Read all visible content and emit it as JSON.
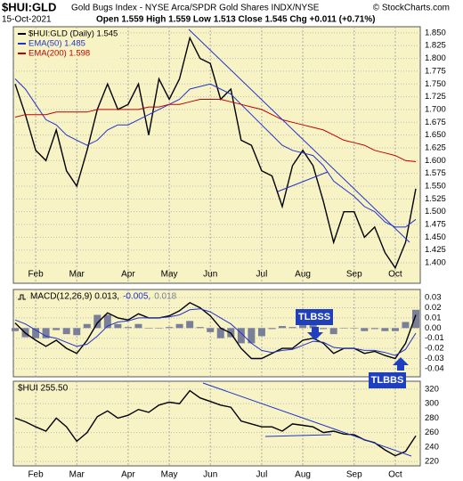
{
  "header": {
    "symbol": "$HUI:GLD",
    "subtitle": "Gold Bugs Index - NYSE Arca/SPDR Gold Shares INDX/NYSE",
    "source": "© StockCharts.com",
    "date": "15-Oct-2021",
    "quote": "Open 1.559  High 1.559  Low 1.513  Close 1.545  Chg +0.011 (+0.71%)"
  },
  "chart_data": [
    {
      "type": "line",
      "categories": [
        null,
        null,
        "Feb",
        null,
        null,
        null,
        "Mar",
        null,
        null,
        null,
        null,
        "Apr",
        null,
        null,
        null,
        "May",
        null,
        null,
        null,
        "Jun",
        null,
        null,
        null,
        null,
        "Jul",
        null,
        null,
        null,
        "Aug",
        null,
        null,
        null,
        null,
        "Sep",
        null,
        null,
        null,
        "Oct",
        null,
        null
      ],
      "series": [
        {
          "name": "$HUI:GLD (Daily) 1.545",
          "color": "#000000",
          "values": [
            1.75,
            1.69,
            1.62,
            1.6,
            1.66,
            1.58,
            1.55,
            1.62,
            1.7,
            1.75,
            1.7,
            1.71,
            1.75,
            1.65,
            1.76,
            1.72,
            1.76,
            1.84,
            1.8,
            1.79,
            1.72,
            1.74,
            1.64,
            1.63,
            1.58,
            1.57,
            1.51,
            1.59,
            1.62,
            1.59,
            1.52,
            1.44,
            1.5,
            1.5,
            1.45,
            1.47,
            1.42,
            1.39,
            1.44,
            1.545
          ]
        },
        {
          "name": "EMA(50) 1.485",
          "color": "#2233cc",
          "values": [
            1.76,
            1.74,
            1.71,
            1.68,
            1.67,
            1.65,
            1.64,
            1.63,
            1.64,
            1.66,
            1.67,
            1.67,
            1.68,
            1.69,
            1.7,
            1.71,
            1.72,
            1.74,
            1.745,
            1.75,
            1.74,
            1.73,
            1.71,
            1.69,
            1.67,
            1.65,
            1.63,
            1.62,
            1.615,
            1.61,
            1.59,
            1.56,
            1.545,
            1.53,
            1.51,
            1.5,
            1.48,
            1.47,
            1.47,
            1.485
          ]
        },
        {
          "name": "EMA(200) 1.598",
          "color": "#c00000",
          "values": [
            1.685,
            1.69,
            1.69,
            1.69,
            1.695,
            1.695,
            1.695,
            1.695,
            1.7,
            1.7,
            1.7,
            1.7,
            1.7,
            1.705,
            1.705,
            1.71,
            1.71,
            1.715,
            1.72,
            1.72,
            1.72,
            1.715,
            1.71,
            1.705,
            1.7,
            1.69,
            1.68,
            1.675,
            1.67,
            1.665,
            1.66,
            1.65,
            1.64,
            1.635,
            1.63,
            1.62,
            1.615,
            1.61,
            1.6,
            1.598
          ]
        }
      ],
      "ylim": [
        1.36,
        1.862
      ],
      "yticks": [
        {
          "value": 1.85,
          "label": "1.850"
        },
        1.825,
        {
          "value": 1.8,
          "label": "1.800"
        },
        1.775,
        {
          "value": 1.75,
          "label": "1.750"
        },
        1.725,
        {
          "value": 1.7,
          "label": "1.700"
        },
        1.675,
        {
          "value": 1.65,
          "label": "1.650"
        },
        1.625,
        {
          "value": 1.6,
          "label": "1.600"
        },
        1.575,
        {
          "value": 1.55,
          "label": "1.550"
        },
        1.525,
        {
          "value": 1.5,
          "label": "1.500"
        },
        1.475,
        {
          "value": 1.45,
          "label": "1.450"
        },
        1.425,
        {
          "value": 1.4,
          "label": "1.400"
        }
      ],
      "grid": true
    },
    {
      "type": "line",
      "series": [
        {
          "name": "MACD(12,26,9) 0.013,",
          "color": "#000000",
          "values": [
            0.005,
            -0.005,
            -0.012,
            -0.018,
            -0.012,
            -0.02,
            -0.025,
            -0.012,
            0.005,
            0.015,
            0.01,
            0.008,
            0.014,
            0.01,
            0.01,
            0.012,
            0.017,
            0.025,
            0.02,
            0.012,
            0.0,
            -0.005,
            -0.02,
            -0.03,
            -0.03,
            -0.025,
            -0.02,
            -0.02,
            -0.012,
            -0.01,
            -0.015,
            -0.025,
            -0.02,
            -0.02,
            -0.025,
            -0.023,
            -0.027,
            -0.03,
            -0.015,
            0.013
          ]
        },
        {
          "name": "-0.005,",
          "color": "#2233cc",
          "values": [
            0.008,
            0.004,
            -0.002,
            -0.008,
            -0.01,
            -0.014,
            -0.018,
            -0.016,
            -0.008,
            0.002,
            0.006,
            0.007,
            0.01,
            0.01,
            0.01,
            0.011,
            0.013,
            0.018,
            0.019,
            0.016,
            0.01,
            0.004,
            -0.005,
            -0.015,
            -0.022,
            -0.024,
            -0.022,
            -0.021,
            -0.017,
            -0.013,
            -0.014,
            -0.019,
            -0.02,
            -0.02,
            -0.022,
            -0.022,
            -0.024,
            -0.027,
            -0.021,
            -0.005
          ]
        },
        {
          "name": "0.018",
          "color": "#7a7f99",
          "type": "bar",
          "values": [
            -0.003,
            -0.009,
            -0.01,
            -0.01,
            -0.002,
            -0.006,
            -0.007,
            0.004,
            0.013,
            0.013,
            0.004,
            0.001,
            0.004,
            0,
            0,
            0.001,
            0.004,
            0.007,
            0.001,
            -0.004,
            -0.01,
            -0.009,
            -0.015,
            -0.015,
            -0.008,
            -0.001,
            0.002,
            0.001,
            0.005,
            0.003,
            -0.001,
            -0.006,
            0,
            0,
            -0.003,
            -0.001,
            -0.003,
            -0.003,
            0.006,
            0.018
          ]
        }
      ],
      "annotations": [
        "TLBSS",
        "TLBBS"
      ],
      "ylim": [
        -0.048,
        0.038
      ],
      "yticks": [
        0.03,
        0.02,
        0.01,
        {
          "value": 0,
          "label": "0.00"
        },
        -0.01,
        -0.02,
        -0.03,
        -0.04
      ],
      "grid": true
    },
    {
      "type": "line",
      "categories": [
        null,
        null,
        "Feb",
        null,
        null,
        null,
        "Mar",
        null,
        null,
        null,
        null,
        "Apr",
        null,
        null,
        null,
        "May",
        null,
        null,
        null,
        "Jun",
        null,
        null,
        null,
        null,
        "Jul",
        null,
        null,
        null,
        "Aug",
        null,
        null,
        null,
        null,
        "Sep",
        null,
        null,
        null,
        "Oct",
        null,
        null
      ],
      "series": [
        {
          "name": "$HUI 255.50",
          "color": "#000000",
          "values": [
            280,
            275,
            268,
            262,
            280,
            268,
            248,
            260,
            282,
            290,
            280,
            284,
            292,
            288,
            298,
            302,
            300,
            318,
            308,
            303,
            298,
            295,
            276,
            272,
            268,
            268,
            262,
            272,
            270,
            268,
            260,
            262,
            258,
            257,
            250,
            246,
            236,
            228,
            234,
            255.5
          ]
        }
      ],
      "ylim": [
        214,
        331
      ],
      "yticks": [
        320,
        300,
        280,
        260,
        240,
        220
      ],
      "grid": true
    }
  ]
}
